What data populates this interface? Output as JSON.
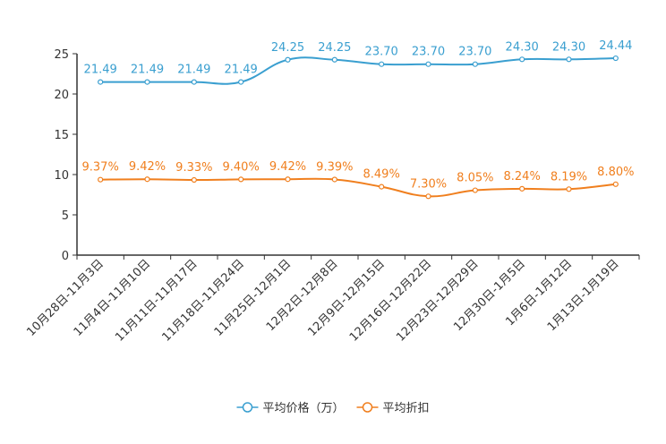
{
  "chart_data": {
    "type": "line",
    "title": "",
    "xlabel": "",
    "ylabel": "",
    "ylim": [
      0,
      25
    ],
    "yticks": [
      0,
      5,
      10,
      15,
      20,
      25
    ],
    "categories": [
      "10月28日-11月3日",
      "11月4日-11月10日",
      "11月11日-11月17日",
      "11月18日-11月24日",
      "11月25日-12月1日",
      "12月2日-12月8日",
      "12月9日-12月15日",
      "12月16日-12月22日",
      "12月23日-12月29日",
      "12月30日-1月5日",
      "1月6日-1月12日",
      "1月13日-1月19日"
    ],
    "series": [
      {
        "name": "平均价格（万）",
        "color": "#3a9fd0",
        "values": [
          21.49,
          21.49,
          21.49,
          21.49,
          24.25,
          24.25,
          23.7,
          23.7,
          23.7,
          24.3,
          24.3,
          24.44
        ],
        "labels": [
          "21.49",
          "21.49",
          "21.49",
          "21.49",
          "24.25",
          "24.25",
          "23.70",
          "23.70",
          "23.70",
          "24.30",
          "24.30",
          "24.44"
        ]
      },
      {
        "name": "平均折扣",
        "color": "#f07f1e",
        "values": [
          9.37,
          9.42,
          9.33,
          9.4,
          9.42,
          9.39,
          8.49,
          7.3,
          8.05,
          8.24,
          8.19,
          8.8
        ],
        "labels": [
          "9.37%",
          "9.42%",
          "9.33%",
          "9.40%",
          "9.42%",
          "9.39%",
          "8.49%",
          "7.30%",
          "8.05%",
          "8.24%",
          "8.19%",
          "8.80%"
        ]
      }
    ],
    "legend_position": "bottom-center"
  }
}
